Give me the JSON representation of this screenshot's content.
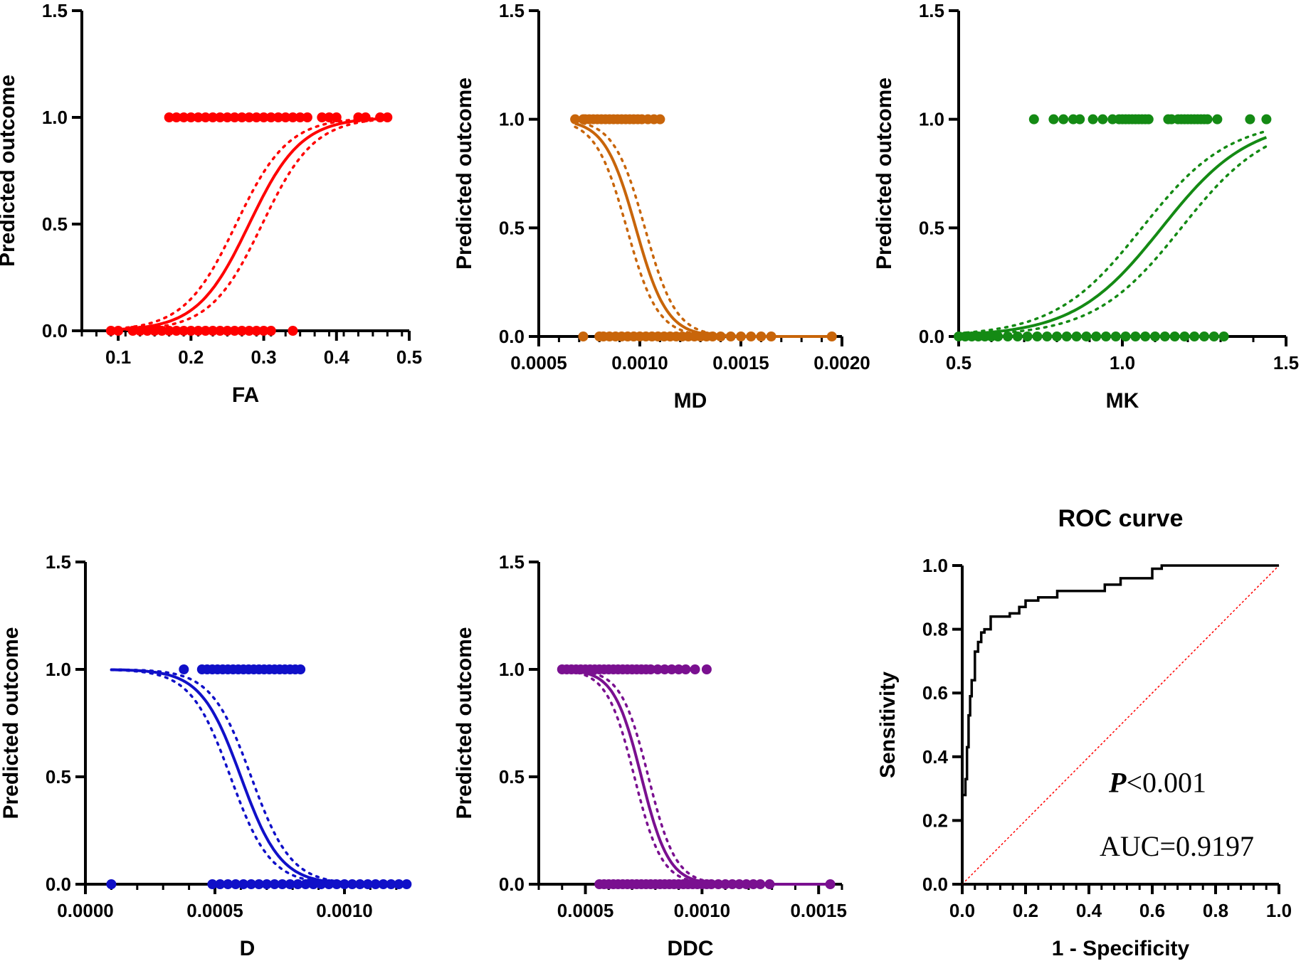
{
  "chart_data": [
    {
      "type": "scatter",
      "id": "fa",
      "xlabel": "FA",
      "ylabel": "Predicted outcome",
      "xlim": [
        0.05,
        0.5
      ],
      "ylim": [
        0,
        1.5
      ],
      "xticks": [
        0.1,
        0.2,
        0.3,
        0.4,
        0.5
      ],
      "xtick_labels": [
        "0.1",
        "0.2",
        "0.3",
        "0.4",
        "0.5"
      ],
      "yticks": [
        0,
        0.5,
        1,
        1.5
      ],
      "ytick_labels": [
        "0.0",
        "0.5",
        "1.0",
        "1.5"
      ],
      "color": "#ff0000",
      "fit": {
        "model": "logistic",
        "x0": 0.28,
        "k": 28,
        "x_range": [
          0.09,
          0.47
        ],
        "ci_offset": 0.018
      },
      "points_y1": [
        0.17,
        0.18,
        0.19,
        0.2,
        0.21,
        0.22,
        0.23,
        0.24,
        0.25,
        0.26,
        0.27,
        0.28,
        0.29,
        0.3,
        0.31,
        0.32,
        0.33,
        0.34,
        0.35,
        0.36,
        0.38,
        0.39,
        0.4,
        0.43,
        0.44,
        0.46,
        0.47
      ],
      "points_y0": [
        0.09,
        0.1,
        0.12,
        0.13,
        0.14,
        0.15,
        0.16,
        0.17,
        0.18,
        0.19,
        0.2,
        0.21,
        0.22,
        0.23,
        0.24,
        0.25,
        0.26,
        0.27,
        0.28,
        0.29,
        0.3,
        0.31,
        0.34
      ]
    },
    {
      "type": "scatter",
      "id": "md",
      "xlabel": "MD",
      "ylabel": "Predicted outcome",
      "xlim": [
        0.0005,
        0.002
      ],
      "ylim": [
        0,
        1.5
      ],
      "xticks": [
        0.0005,
        0.001,
        0.0015,
        0.002
      ],
      "xtick_labels": [
        "0.0005",
        "0.0010",
        "0.0015",
        "0.0020"
      ],
      "yticks": [
        0,
        0.5,
        1,
        1.5
      ],
      "ytick_labels": [
        "0.0",
        "0.5",
        "1.0",
        "1.5"
      ],
      "color": "#c8650a",
      "fit": {
        "model": "logistic",
        "x0": 0.00098,
        "k": -13000,
        "x_range": [
          0.00068,
          0.00195
        ],
        "ci_offset": 4.5e-05
      },
      "points_y1": [
        0.00068,
        0.00072,
        0.00073,
        0.00075,
        0.00077,
        0.00079,
        0.00081,
        0.00083,
        0.00085,
        0.00087,
        0.00089,
        0.00091,
        0.00093,
        0.00095,
        0.00097,
        0.00099,
        0.00101,
        0.00104,
        0.00107,
        0.0011
      ],
      "points_y0": [
        0.00072,
        0.0008,
        0.00082,
        0.00085,
        0.00088,
        0.00091,
        0.00094,
        0.00097,
        0.001,
        0.00103,
        0.00106,
        0.00109,
        0.00112,
        0.00115,
        0.00118,
        0.00121,
        0.00124,
        0.00127,
        0.0013,
        0.00133,
        0.00136,
        0.0014,
        0.00145,
        0.0015,
        0.00155,
        0.0016,
        0.00165,
        0.00195
      ]
    },
    {
      "type": "scatter",
      "id": "mk",
      "xlabel": "MK",
      "ylabel": "Predicted outcome",
      "xlim": [
        0.5,
        1.5
      ],
      "ylim": [
        0,
        1.5
      ],
      "xticks": [
        0.5,
        1.0,
        1.5
      ],
      "xtick_labels": [
        "0.5",
        "1.0",
        "1.5"
      ],
      "yticks": [
        0,
        0.5,
        1,
        1.5
      ],
      "ytick_labels": [
        "0.0",
        "0.5",
        "1.0",
        "1.5"
      ],
      "color": "#148a14",
      "fit": {
        "model": "logistic",
        "x0": 1.12,
        "k": 7.5,
        "x_range": [
          0.5,
          1.44
        ],
        "ci_offset": 0.06
      },
      "points_y1": [
        0.73,
        0.79,
        0.82,
        0.85,
        0.87,
        0.91,
        0.94,
        0.97,
        0.99,
        1.0,
        1.01,
        1.02,
        1.03,
        1.04,
        1.05,
        1.06,
        1.07,
        1.08,
        1.14,
        1.15,
        1.17,
        1.18,
        1.19,
        1.2,
        1.21,
        1.22,
        1.23,
        1.24,
        1.25,
        1.26,
        1.29,
        1.39,
        1.44
      ],
      "points_y0": [
        0.5,
        0.52,
        0.54,
        0.56,
        0.58,
        0.6,
        0.62,
        0.65,
        0.68,
        0.71,
        0.74,
        0.77,
        0.8,
        0.83,
        0.86,
        0.89,
        0.92,
        0.95,
        0.98,
        1.01,
        1.04,
        1.07,
        1.1,
        1.13,
        1.16,
        1.19,
        1.22,
        1.25,
        1.28,
        1.31
      ]
    },
    {
      "type": "scatter",
      "id": "d",
      "xlabel": "D",
      "ylabel": "Predicted outcome",
      "xlim": [
        0.0,
        0.00125
      ],
      "ylim": [
        0,
        1.5
      ],
      "xticks": [
        0.0,
        0.0005,
        0.001
      ],
      "xtick_labels": [
        "0.0000",
        "0.0005",
        "0.0010"
      ],
      "yticks": [
        0,
        0.5,
        1,
        1.5
      ],
      "ytick_labels": [
        "0.0",
        "0.5",
        "1.0",
        "1.5"
      ],
      "color": "#1010c8",
      "fit": {
        "model": "logistic",
        "x0": 0.0006,
        "k": -13000,
        "x_range": [
          0.0001,
          0.00124
        ],
        "ci_offset": 4e-05
      },
      "points_y1": [
        0.00038,
        0.00045,
        0.00047,
        0.00049,
        0.00051,
        0.00053,
        0.00055,
        0.00057,
        0.00059,
        0.00061,
        0.00063,
        0.00065,
        0.00067,
        0.00069,
        0.00071,
        0.00073,
        0.00075,
        0.00077,
        0.00079,
        0.00081,
        0.00083
      ],
      "points_y0": [
        0.0001,
        0.00049,
        0.00052,
        0.00055,
        0.00058,
        0.00061,
        0.00064,
        0.00067,
        0.0007,
        0.00073,
        0.00076,
        0.00079,
        0.00082,
        0.00085,
        0.00088,
        0.00091,
        0.00094,
        0.00097,
        0.001,
        0.00103,
        0.00106,
        0.00109,
        0.00112,
        0.00115,
        0.00118,
        0.00121,
        0.00124
      ]
    },
    {
      "type": "scatter",
      "id": "ddc",
      "xlabel": "DDC",
      "ylabel": "Predicted outcome",
      "xlim": [
        0.0003,
        0.0016
      ],
      "ylim": [
        0,
        1.5
      ],
      "xticks": [
        0.0005,
        0.001,
        0.0015
      ],
      "xtick_labels": [
        "0.0005",
        "0.0010",
        "0.0015"
      ],
      "yticks": [
        0,
        0.5,
        1,
        1.5
      ],
      "ytick_labels": [
        "0.0",
        "0.5",
        "1.0",
        "1.5"
      ],
      "color": "#7a1090",
      "fit": {
        "model": "logistic",
        "x0": 0.00074,
        "k": -17000,
        "x_range": [
          0.0004,
          0.00155
        ],
        "ci_offset": 3e-05
      },
      "points_y1": [
        0.0004,
        0.00042,
        0.00044,
        0.00046,
        0.00048,
        0.0005,
        0.00052,
        0.00054,
        0.00056,
        0.00058,
        0.0006,
        0.00062,
        0.00064,
        0.00066,
        0.00068,
        0.0007,
        0.00072,
        0.00074,
        0.00076,
        0.00078,
        0.00081,
        0.00084,
        0.00087,
        0.0009,
        0.00093,
        0.00097,
        0.00102
      ],
      "points_y0": [
        0.00056,
        0.00058,
        0.0006,
        0.00062,
        0.00064,
        0.00066,
        0.00068,
        0.0007,
        0.00072,
        0.00074,
        0.00076,
        0.00078,
        0.0008,
        0.00082,
        0.00084,
        0.00086,
        0.00088,
        0.0009,
        0.00092,
        0.00094,
        0.00096,
        0.00098,
        0.001,
        0.00102,
        0.00104,
        0.00107,
        0.0011,
        0.00113,
        0.00116,
        0.00119,
        0.00122,
        0.00125,
        0.00129,
        0.00155
      ]
    },
    {
      "type": "line",
      "id": "roc",
      "title": "ROC curve",
      "xlabel": "1 - Specificity",
      "ylabel": "Sensitivity",
      "xlim": [
        0,
        1
      ],
      "ylim": [
        0,
        1
      ],
      "xticks": [
        0,
        0.2,
        0.4,
        0.6,
        0.8,
        1.0
      ],
      "xtick_labels": [
        "0.0",
        "0.2",
        "0.4",
        "0.6",
        "0.8",
        "1.0"
      ],
      "yticks": [
        0,
        0.2,
        0.4,
        0.6,
        0.8,
        1.0
      ],
      "ytick_labels": [
        "0.0",
        "0.2",
        "0.4",
        "0.6",
        "0.8",
        "1.0"
      ],
      "line_color": "#000000",
      "reference_color": "#ff0000",
      "x": [
        0.0,
        0.0,
        0.01,
        0.01,
        0.015,
        0.015,
        0.02,
        0.02,
        0.025,
        0.025,
        0.03,
        0.03,
        0.04,
        0.04,
        0.05,
        0.05,
        0.06,
        0.06,
        0.07,
        0.07,
        0.09,
        0.09,
        0.15,
        0.15,
        0.18,
        0.18,
        0.2,
        0.2,
        0.24,
        0.24,
        0.3,
        0.3,
        0.45,
        0.45,
        0.5,
        0.5,
        0.6,
        0.6,
        0.63,
        0.63,
        1.0
      ],
      "y": [
        0.0,
        0.28,
        0.28,
        0.33,
        0.33,
        0.43,
        0.43,
        0.53,
        0.53,
        0.59,
        0.59,
        0.64,
        0.64,
        0.73,
        0.73,
        0.76,
        0.76,
        0.79,
        0.79,
        0.8,
        0.8,
        0.84,
        0.84,
        0.85,
        0.85,
        0.87,
        0.87,
        0.89,
        0.89,
        0.9,
        0.9,
        0.92,
        0.92,
        0.94,
        0.94,
        0.96,
        0.96,
        0.99,
        0.99,
        1.0,
        1.0
      ],
      "annotations": {
        "p_prefix": "P",
        "p_value": "<0.001",
        "auc": "AUC=0.9197"
      }
    }
  ]
}
